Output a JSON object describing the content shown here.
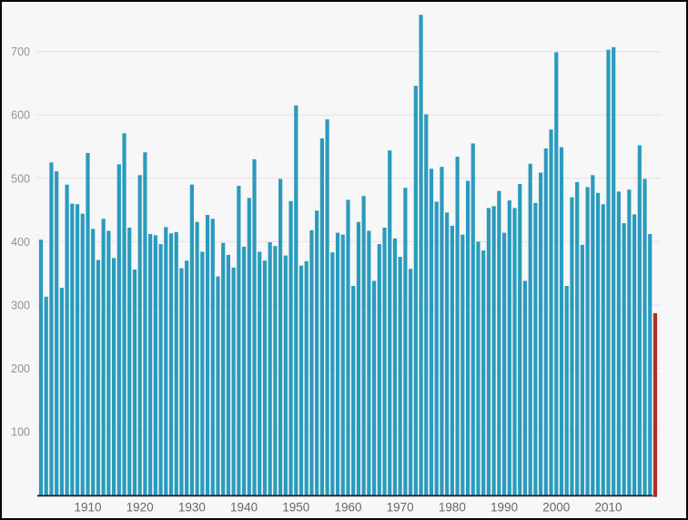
{
  "window": {
    "background": "#f7f7f8",
    "border_color": "#060606"
  },
  "chart_data": {
    "type": "bar",
    "title": "",
    "xlabel": "",
    "ylabel": "",
    "grid": true,
    "legend": "none",
    "ylim": [
      0,
      770
    ],
    "y_ticks": [
      100,
      200,
      300,
      400,
      500,
      600,
      700
    ],
    "x_ticks": [
      1910,
      1920,
      1930,
      1940,
      1950,
      1960,
      1970,
      1980,
      1990,
      2000,
      2010
    ],
    "bar_color": "#2b9bbd",
    "highlight": {
      "year": 2019,
      "color": "#b22b24",
      "note": "last-bar-highlighted-red"
    },
    "gridline_color": "#e4e4e6",
    "axis_line_color": "#1b1c20",
    "years": [
      1901,
      1902,
      1903,
      1904,
      1905,
      1906,
      1907,
      1908,
      1909,
      1910,
      1911,
      1912,
      1913,
      1914,
      1915,
      1916,
      1917,
      1918,
      1919,
      1920,
      1921,
      1922,
      1923,
      1924,
      1925,
      1926,
      1927,
      1928,
      1929,
      1930,
      1931,
      1932,
      1933,
      1934,
      1935,
      1936,
      1937,
      1938,
      1939,
      1940,
      1941,
      1942,
      1943,
      1944,
      1945,
      1946,
      1947,
      1948,
      1949,
      1950,
      1951,
      1952,
      1953,
      1954,
      1955,
      1956,
      1957,
      1958,
      1959,
      1960,
      1961,
      1962,
      1963,
      1964,
      1965,
      1966,
      1967,
      1968,
      1969,
      1970,
      1971,
      1972,
      1973,
      1974,
      1975,
      1976,
      1977,
      1978,
      1979,
      1980,
      1981,
      1982,
      1983,
      1984,
      1985,
      1986,
      1987,
      1988,
      1989,
      1990,
      1991,
      1992,
      1993,
      1994,
      1995,
      1996,
      1997,
      1998,
      1999,
      2000,
      2001,
      2002,
      2003,
      2004,
      2005,
      2006,
      2007,
      2008,
      2009,
      2010,
      2011,
      2012,
      2013,
      2014,
      2015,
      2016,
      2017,
      2018,
      2019
    ],
    "values": [
      403,
      313,
      525,
      511,
      327,
      490,
      460,
      459,
      444,
      540,
      420,
      371,
      436,
      417,
      374,
      522,
      571,
      422,
      356,
      505,
      541,
      412,
      410,
      396,
      423,
      413,
      415,
      358,
      370,
      490,
      431,
      384,
      442,
      436,
      345,
      398,
      379,
      359,
      488,
      392,
      469,
      530,
      384,
      370,
      399,
      393,
      499,
      378,
      464,
      615,
      362,
      369,
      418,
      449,
      563,
      593,
      383,
      414,
      411,
      466,
      330,
      431,
      472,
      417,
      338,
      396,
      422,
      544,
      405,
      376,
      485,
      357,
      646,
      758,
      601,
      515,
      463,
      518,
      446,
      425,
      534,
      411,
      496,
      555,
      400,
      386,
      453,
      456,
      480,
      414,
      465,
      453,
      491,
      338,
      523,
      461,
      509,
      547,
      577,
      699,
      549,
      330,
      470,
      494,
      395,
      486,
      505,
      477,
      459,
      703,
      707,
      479,
      429,
      482,
      443,
      552,
      499,
      412,
      287
    ]
  }
}
